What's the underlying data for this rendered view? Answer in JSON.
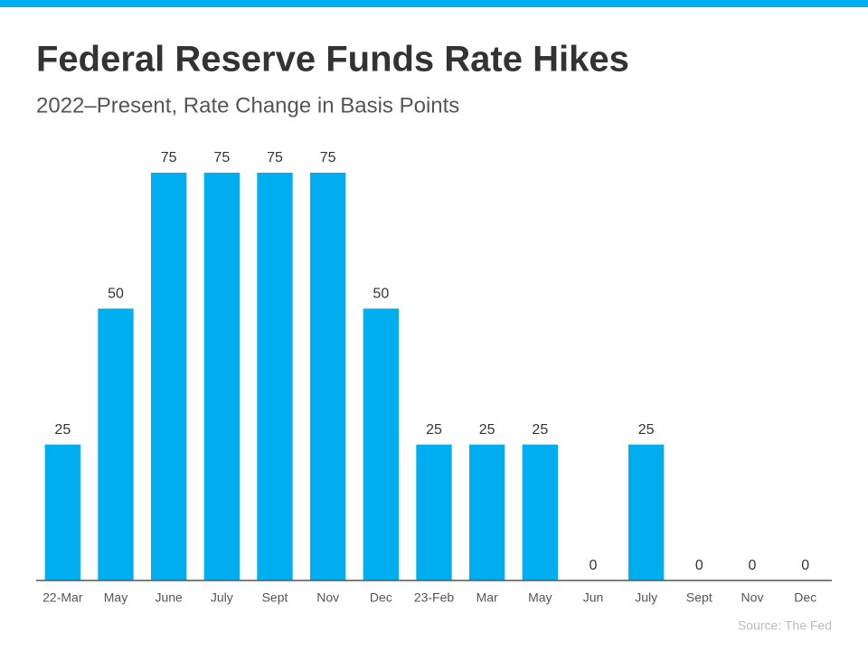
{
  "chart_data": {
    "type": "bar",
    "title": "Federal Reserve Funds Rate Hikes",
    "subtitle": "2022–Present, Rate Change in Basis Points",
    "categories": [
      "22-Mar",
      "May",
      "June",
      "July",
      "Sept",
      "Nov",
      "Dec",
      "23-Feb",
      "Mar",
      "May",
      "Jun",
      "July",
      "Sept",
      "Nov",
      "Dec"
    ],
    "values": [
      25,
      50,
      75,
      75,
      75,
      75,
      50,
      25,
      25,
      25,
      0,
      25,
      0,
      0,
      0
    ],
    "color": "#00aeef",
    "source": "Source: The Fed"
  }
}
